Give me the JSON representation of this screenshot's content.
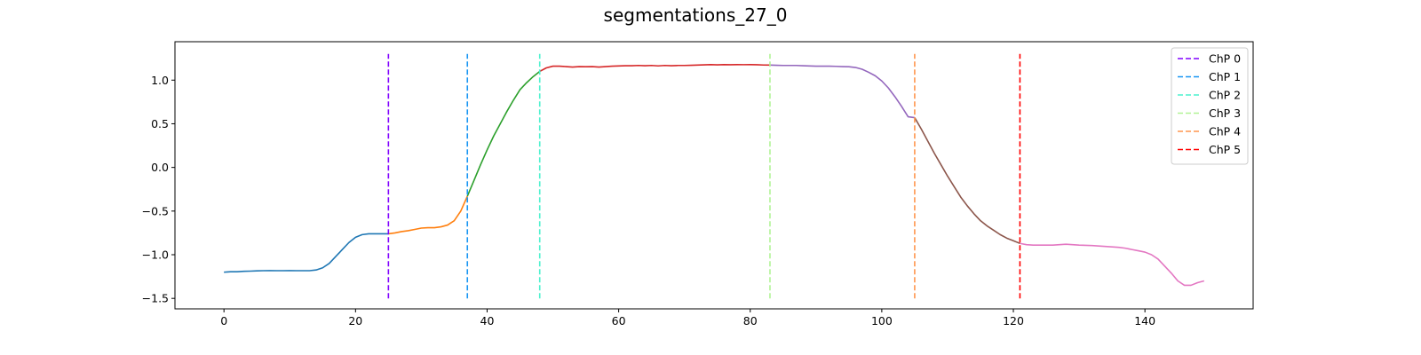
{
  "chart_data": {
    "type": "line",
    "title": "segmentations_27_0",
    "xlabel": "",
    "ylabel": "",
    "xlim": [
      -7.45,
      156.45
    ],
    "ylim": [
      -1.62,
      1.44
    ],
    "xticks": [
      0,
      20,
      40,
      60,
      80,
      100,
      120,
      140
    ],
    "yticks": [
      -1.5,
      -1.0,
      -0.5,
      0.0,
      0.5,
      1.0
    ],
    "ytick_labels": [
      "−1.5",
      "−1.0",
      "−0.5",
      "0.0",
      "0.5",
      "1.0"
    ],
    "grid": false,
    "legend_position": "top-right",
    "segments": [
      {
        "color": "#1f77b4",
        "x": [
          0,
          1,
          2,
          3,
          4,
          5,
          6,
          7,
          8,
          9,
          10,
          11,
          12,
          13,
          14,
          15,
          16,
          17,
          18,
          19,
          20,
          21,
          22,
          23,
          24,
          25
        ],
        "y": [
          -1.2,
          -1.195,
          -1.195,
          -1.19,
          -1.188,
          -1.185,
          -1.183,
          -1.182,
          -1.183,
          -1.183,
          -1.182,
          -1.183,
          -1.183,
          -1.183,
          -1.175,
          -1.15,
          -1.1,
          -1.02,
          -0.94,
          -0.86,
          -0.8,
          -0.77,
          -0.76,
          -0.76,
          -0.76,
          -0.76
        ]
      },
      {
        "color": "#ff7f0e",
        "x": [
          25,
          26,
          27,
          28,
          29,
          30,
          31,
          32,
          33,
          34,
          35,
          36,
          37
        ],
        "y": [
          -0.76,
          -0.75,
          -0.735,
          -0.725,
          -0.71,
          -0.695,
          -0.69,
          -0.69,
          -0.68,
          -0.66,
          -0.61,
          -0.5,
          -0.33
        ]
      },
      {
        "color": "#2ca02c",
        "x": [
          37,
          38,
          39,
          40,
          41,
          42,
          43,
          44,
          45,
          46,
          47,
          48
        ],
        "y": [
          -0.33,
          -0.15,
          0.03,
          0.2,
          0.36,
          0.5,
          0.64,
          0.77,
          0.89,
          0.97,
          1.04,
          1.1
        ]
      },
      {
        "color": "#d62728",
        "x": [
          48,
          49,
          50,
          51,
          52,
          53,
          54,
          55,
          56,
          57,
          58,
          59,
          60,
          61,
          62,
          63,
          64,
          65,
          66,
          67,
          68,
          69,
          70,
          71,
          72,
          73,
          74,
          75,
          76,
          77,
          78,
          79,
          80,
          81,
          82,
          83
        ],
        "y": [
          1.1,
          1.14,
          1.16,
          1.16,
          1.155,
          1.15,
          1.155,
          1.153,
          1.155,
          1.15,
          1.155,
          1.16,
          1.162,
          1.165,
          1.165,
          1.168,
          1.165,
          1.168,
          1.163,
          1.168,
          1.165,
          1.168,
          1.168,
          1.17,
          1.172,
          1.175,
          1.178,
          1.175,
          1.178,
          1.176,
          1.178,
          1.177,
          1.178,
          1.176,
          1.173,
          1.172
        ]
      },
      {
        "color": "#9467bd",
        "x": [
          83,
          84,
          85,
          86,
          87,
          88,
          89,
          90,
          91,
          92,
          93,
          94,
          95,
          96,
          97,
          98,
          99,
          100,
          101,
          102,
          103,
          104,
          105
        ],
        "y": [
          1.172,
          1.17,
          1.168,
          1.168,
          1.168,
          1.165,
          1.162,
          1.16,
          1.16,
          1.16,
          1.158,
          1.155,
          1.153,
          1.145,
          1.125,
          1.09,
          1.05,
          0.99,
          0.91,
          0.81,
          0.7,
          0.58,
          0.57
        ]
      },
      {
        "color": "#8c564b",
        "x": [
          105,
          106,
          107,
          108,
          109,
          110,
          111,
          112,
          113,
          114,
          115,
          116,
          117,
          118,
          119,
          120,
          121
        ],
        "y": [
          0.57,
          0.44,
          0.3,
          0.16,
          0.03,
          -0.1,
          -0.22,
          -0.34,
          -0.44,
          -0.53,
          -0.61,
          -0.67,
          -0.72,
          -0.77,
          -0.81,
          -0.84,
          -0.87
        ]
      },
      {
        "color": "#e377c2",
        "x": [
          121,
          122,
          123,
          124,
          125,
          126,
          127,
          128,
          129,
          130,
          131,
          132,
          133,
          134,
          135,
          136,
          137,
          138,
          139,
          140,
          141,
          142,
          143,
          144,
          145,
          146,
          147,
          148,
          149
        ],
        "y": [
          -0.87,
          -0.885,
          -0.89,
          -0.89,
          -0.89,
          -0.89,
          -0.885,
          -0.88,
          -0.885,
          -0.89,
          -0.892,
          -0.895,
          -0.9,
          -0.905,
          -0.91,
          -0.915,
          -0.925,
          -0.94,
          -0.955,
          -0.97,
          -1.0,
          -1.05,
          -1.13,
          -1.21,
          -1.3,
          -1.35,
          -1.35,
          -1.32,
          -1.3
        ]
      }
    ],
    "changepoints": [
      {
        "name": "ChP 0",
        "x": 25,
        "color": "#8000ff"
      },
      {
        "name": "ChP 1",
        "x": 37,
        "color": "#1996f3"
      },
      {
        "name": "ChP 2",
        "x": 48,
        "color": "#4cf2ce"
      },
      {
        "name": "ChP 3",
        "x": 83,
        "color": "#b2f396"
      },
      {
        "name": "ChP 4",
        "x": 105,
        "color": "#ff964f"
      },
      {
        "name": "ChP 5",
        "x": 121,
        "color": "#ff0000"
      }
    ],
    "changepoint_ymin": -1.5,
    "changepoint_ymax": 1.3
  }
}
